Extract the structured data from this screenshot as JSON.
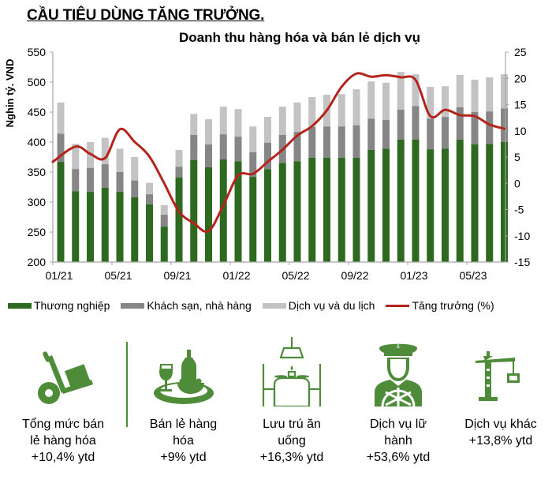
{
  "header": {
    "title": "CẦU TIÊU DÙNG TĂNG TRƯỞNG",
    "title_suffix": "."
  },
  "colors": {
    "commerce": "#2d6a1f",
    "hotels_restaurants": "#868686",
    "services_tourism": "#c3c3c3",
    "growth": "#b5241c",
    "icon_green": "#4e8c3a",
    "axis": "#a6a6a6"
  },
  "chart_data": {
    "type": "bar",
    "stacked": true,
    "title": "Doanh thu hàng hóa và bán lẻ dịch vụ",
    "ylabel": "Nghìn tỷ. VND",
    "ylabel_display": "Nghin tỷ. VND",
    "ylim": [
      200,
      550
    ],
    "yticks": [
      200,
      250,
      300,
      350,
      400,
      450,
      500,
      550
    ],
    "y2lim": [
      -15,
      25
    ],
    "y2ticks": [
      -15,
      -10,
      -5,
      0,
      5,
      10,
      15,
      20,
      25
    ],
    "xtick_labels": [
      "01/21",
      "05/21",
      "09/21",
      "01/22",
      "05/22",
      "09/22",
      "01/23",
      "05/23"
    ],
    "grid": false,
    "legend_position": "bottom",
    "categories": [
      "01/21",
      "02/21",
      "03/21",
      "04/21",
      "05/21",
      "06/21",
      "07/21",
      "08/21",
      "09/21",
      "10/21",
      "11/21",
      "12/21",
      "01/22",
      "02/22",
      "03/22",
      "04/22",
      "05/22",
      "06/22",
      "07/22",
      "08/22",
      "09/22",
      "10/22",
      "11/22",
      "12/22",
      "01/23",
      "02/23",
      "03/23",
      "04/23",
      "05/23",
      "06/23",
      "07/23"
    ],
    "series": [
      {
        "name": "Thương nghiệp",
        "type": "bar",
        "axis": "left",
        "values": [
          367,
          318,
          317,
          324,
          317,
          308,
          296,
          259,
          341,
          370,
          358,
          371,
          368,
          342,
          355,
          365,
          368,
          374,
          374,
          374,
          374,
          387,
          389,
          404,
          404,
          388,
          389,
          404,
          396,
          397,
          400
        ]
      },
      {
        "name": "Khách sạn, nhà hàng",
        "type": "bar",
        "axis": "left",
        "cumulative_top": [
          414,
          355,
          357,
          363,
          350,
          336,
          313,
          279,
          359,
          412,
          396,
          413,
          409,
          383,
          399,
          412,
          417,
          425,
          426,
          426,
          428,
          439,
          437,
          454,
          460,
          439,
          442,
          458,
          450,
          451,
          456
        ]
      },
      {
        "name": "Dịch vụ và du lịch",
        "type": "bar",
        "axis": "left",
        "cumulative_top": [
          466,
          397,
          400,
          407,
          389,
          375,
          332,
          295,
          387,
          447,
          438,
          459,
          455,
          426,
          442,
          459,
          466,
          475,
          479,
          480,
          488,
          501,
          499,
          517,
          513,
          492,
          493,
          512,
          504,
          508,
          513
        ]
      },
      {
        "name": "Tăng trưởng (%)",
        "type": "line",
        "axis": "right",
        "values": [
          4.1,
          7.0,
          5.6,
          4.8,
          10.3,
          7.9,
          5.1,
          0.0,
          -5.4,
          -7.6,
          -9.1,
          -4.2,
          1.5,
          1.8,
          4.1,
          6.4,
          9.1,
          10.9,
          13.9,
          18.4,
          20.9,
          20.3,
          20.6,
          20.2,
          19.7,
          12.8,
          14.0,
          13.0,
          12.8,
          11.2,
          10.4
        ]
      }
    ]
  },
  "legend": [
    {
      "label": "Thương nghiệp",
      "kind": "box",
      "color_key": "commerce"
    },
    {
      "label": "Khách sạn, nhà hàng",
      "kind": "box",
      "color_key": "hotels_restaurants"
    },
    {
      "label": "Dịch vụ và du lịch",
      "kind": "box",
      "color_key": "services_tourism"
    },
    {
      "label": "Tăng trưởng (%)",
      "kind": "line",
      "color_key": "growth"
    }
  ],
  "kpis": [
    {
      "icon": "hand-truck-icon",
      "line1": "Tổng mức bán",
      "line2": "lẻ hàng hóa",
      "line3": "+10,4% ytd"
    },
    {
      "icon": "wine-food-tray-icon",
      "line1": "Bán lẻ hàng",
      "line2": "hóa",
      "line3": "+9% ytd"
    },
    {
      "icon": "dining-table-icon",
      "line1": "Lưu trú ăn",
      "line2": "uống",
      "line3": "+16,3% ytd"
    },
    {
      "icon": "ship-captain-icon",
      "line1": "Dịch vụ lữ",
      "line2": "hành",
      "line3": "+53,6% ytd"
    },
    {
      "icon": "crane-icon",
      "line1": "Dịch vụ khác",
      "line2": "+13,8% ytd",
      "line3": ""
    }
  ]
}
